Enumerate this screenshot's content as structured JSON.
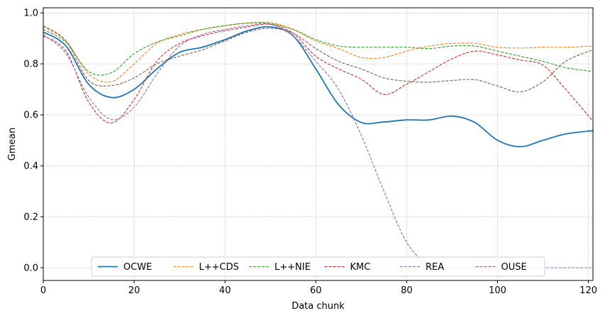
{
  "chart_data": {
    "type": "line",
    "xlabel": "Data chunk",
    "ylabel": "Gmean",
    "xlim": [
      0,
      121
    ],
    "ylim": [
      -0.05,
      1.02
    ],
    "xticks": [
      0,
      20,
      40,
      60,
      80,
      100,
      120
    ],
    "yticks": [
      0.0,
      0.2,
      0.4,
      0.6,
      0.8,
      1.0
    ],
    "xtick_labels": [
      "0",
      "20",
      "40",
      "60",
      "80",
      "100",
      "120"
    ],
    "ytick_labels": [
      "0.0",
      "0.2",
      "0.4",
      "0.6",
      "0.8",
      "1.0"
    ],
    "grid": true,
    "legend_position": "lower-center",
    "series": [
      {
        "name": "OCWE",
        "color": "#1f77b4",
        "dash": "solid",
        "points": [
          [
            0,
            0.925
          ],
          [
            5,
            0.87
          ],
          [
            10,
            0.72
          ],
          [
            15,
            0.668
          ],
          [
            20,
            0.7
          ],
          [
            25,
            0.78
          ],
          [
            30,
            0.845
          ],
          [
            35,
            0.865
          ],
          [
            40,
            0.895
          ],
          [
            45,
            0.93
          ],
          [
            50,
            0.945
          ],
          [
            55,
            0.91
          ],
          [
            60,
            0.78
          ],
          [
            65,
            0.64
          ],
          [
            70,
            0.57
          ],
          [
            75,
            0.572
          ],
          [
            80,
            0.58
          ],
          [
            85,
            0.58
          ],
          [
            90,
            0.595
          ],
          [
            95,
            0.57
          ],
          [
            100,
            0.5
          ],
          [
            105,
            0.475
          ],
          [
            110,
            0.5
          ],
          [
            115,
            0.525
          ],
          [
            121,
            0.538
          ]
        ]
      },
      {
        "name": "L++CDS",
        "color": "#ff7f0e",
        "dash": "dashed",
        "points": [
          [
            0,
            0.945
          ],
          [
            5,
            0.89
          ],
          [
            10,
            0.76
          ],
          [
            15,
            0.73
          ],
          [
            20,
            0.8
          ],
          [
            25,
            0.88
          ],
          [
            30,
            0.915
          ],
          [
            35,
            0.935
          ],
          [
            40,
            0.95
          ],
          [
            45,
            0.96
          ],
          [
            50,
            0.962
          ],
          [
            55,
            0.935
          ],
          [
            60,
            0.89
          ],
          [
            65,
            0.86
          ],
          [
            70,
            0.825
          ],
          [
            75,
            0.825
          ],
          [
            80,
            0.85
          ],
          [
            85,
            0.87
          ],
          [
            90,
            0.88
          ],
          [
            95,
            0.88
          ],
          [
            100,
            0.865
          ],
          [
            105,
            0.862
          ],
          [
            110,
            0.865
          ],
          [
            115,
            0.865
          ],
          [
            121,
            0.87
          ]
        ]
      },
      {
        "name": "L++NIE",
        "color": "#2ca02c",
        "dash": "dashed",
        "points": [
          [
            0,
            0.935
          ],
          [
            5,
            0.885
          ],
          [
            10,
            0.77
          ],
          [
            15,
            0.765
          ],
          [
            20,
            0.84
          ],
          [
            25,
            0.885
          ],
          [
            30,
            0.91
          ],
          [
            35,
            0.935
          ],
          [
            40,
            0.95
          ],
          [
            45,
            0.96
          ],
          [
            50,
            0.958
          ],
          [
            55,
            0.935
          ],
          [
            60,
            0.895
          ],
          [
            65,
            0.87
          ],
          [
            70,
            0.865
          ],
          [
            75,
            0.865
          ],
          [
            80,
            0.865
          ],
          [
            85,
            0.86
          ],
          [
            90,
            0.87
          ],
          [
            95,
            0.87
          ],
          [
            100,
            0.85
          ],
          [
            105,
            0.83
          ],
          [
            110,
            0.81
          ],
          [
            115,
            0.785
          ],
          [
            121,
            0.77
          ]
        ]
      },
      {
        "name": "KMC",
        "color": "#d62728",
        "dash": "dashed",
        "points": [
          [
            0,
            0.91
          ],
          [
            5,
            0.85
          ],
          [
            10,
            0.65
          ],
          [
            15,
            0.568
          ],
          [
            20,
            0.66
          ],
          [
            25,
            0.81
          ],
          [
            30,
            0.88
          ],
          [
            35,
            0.91
          ],
          [
            40,
            0.93
          ],
          [
            45,
            0.945
          ],
          [
            50,
            0.955
          ],
          [
            55,
            0.92
          ],
          [
            60,
            0.83
          ],
          [
            65,
            0.78
          ],
          [
            70,
            0.74
          ],
          [
            75,
            0.68
          ],
          [
            80,
            0.72
          ],
          [
            85,
            0.77
          ],
          [
            90,
            0.82
          ],
          [
            95,
            0.85
          ],
          [
            100,
            0.835
          ],
          [
            105,
            0.815
          ],
          [
            110,
            0.795
          ],
          [
            115,
            0.7
          ],
          [
            121,
            0.575
          ]
        ]
      },
      {
        "name": "REA",
        "color": "#9467bd",
        "dash": "dashed",
        "points": [
          [
            0,
            0.915
          ],
          [
            5,
            0.84
          ],
          [
            10,
            0.67
          ],
          [
            15,
            0.582
          ],
          [
            20,
            0.63
          ],
          [
            25,
            0.76
          ],
          [
            30,
            0.87
          ],
          [
            35,
            0.915
          ],
          [
            40,
            0.935
          ],
          [
            45,
            0.95
          ],
          [
            50,
            0.955
          ],
          [
            55,
            0.91
          ],
          [
            60,
            0.81
          ],
          [
            65,
            0.7
          ],
          [
            70,
            0.52
          ],
          [
            75,
            0.3
          ],
          [
            80,
            0.1
          ],
          [
            85,
            0.01
          ],
          [
            90,
            0.0
          ],
          [
            95,
            0.0
          ],
          [
            100,
            0.0
          ],
          [
            105,
            0.0
          ],
          [
            110,
            0.0
          ],
          [
            115,
            0.0
          ],
          [
            121,
            0.0
          ]
        ]
      },
      {
        "name": "OUSE",
        "color": "#8c564b",
        "dash": "dashed",
        "points": [
          [
            0,
            0.95
          ],
          [
            5,
            0.89
          ],
          [
            10,
            0.735
          ],
          [
            15,
            0.715
          ],
          [
            20,
            0.745
          ],
          [
            25,
            0.8
          ],
          [
            30,
            0.83
          ],
          [
            35,
            0.855
          ],
          [
            40,
            0.89
          ],
          [
            45,
            0.925
          ],
          [
            50,
            0.94
          ],
          [
            55,
            0.92
          ],
          [
            60,
            0.86
          ],
          [
            65,
            0.81
          ],
          [
            70,
            0.78
          ],
          [
            75,
            0.745
          ],
          [
            80,
            0.732
          ],
          [
            85,
            0.728
          ],
          [
            90,
            0.735
          ],
          [
            95,
            0.738
          ],
          [
            100,
            0.713
          ],
          [
            105,
            0.69
          ],
          [
            110,
            0.73
          ],
          [
            115,
            0.81
          ],
          [
            121,
            0.855
          ]
        ]
      }
    ]
  }
}
